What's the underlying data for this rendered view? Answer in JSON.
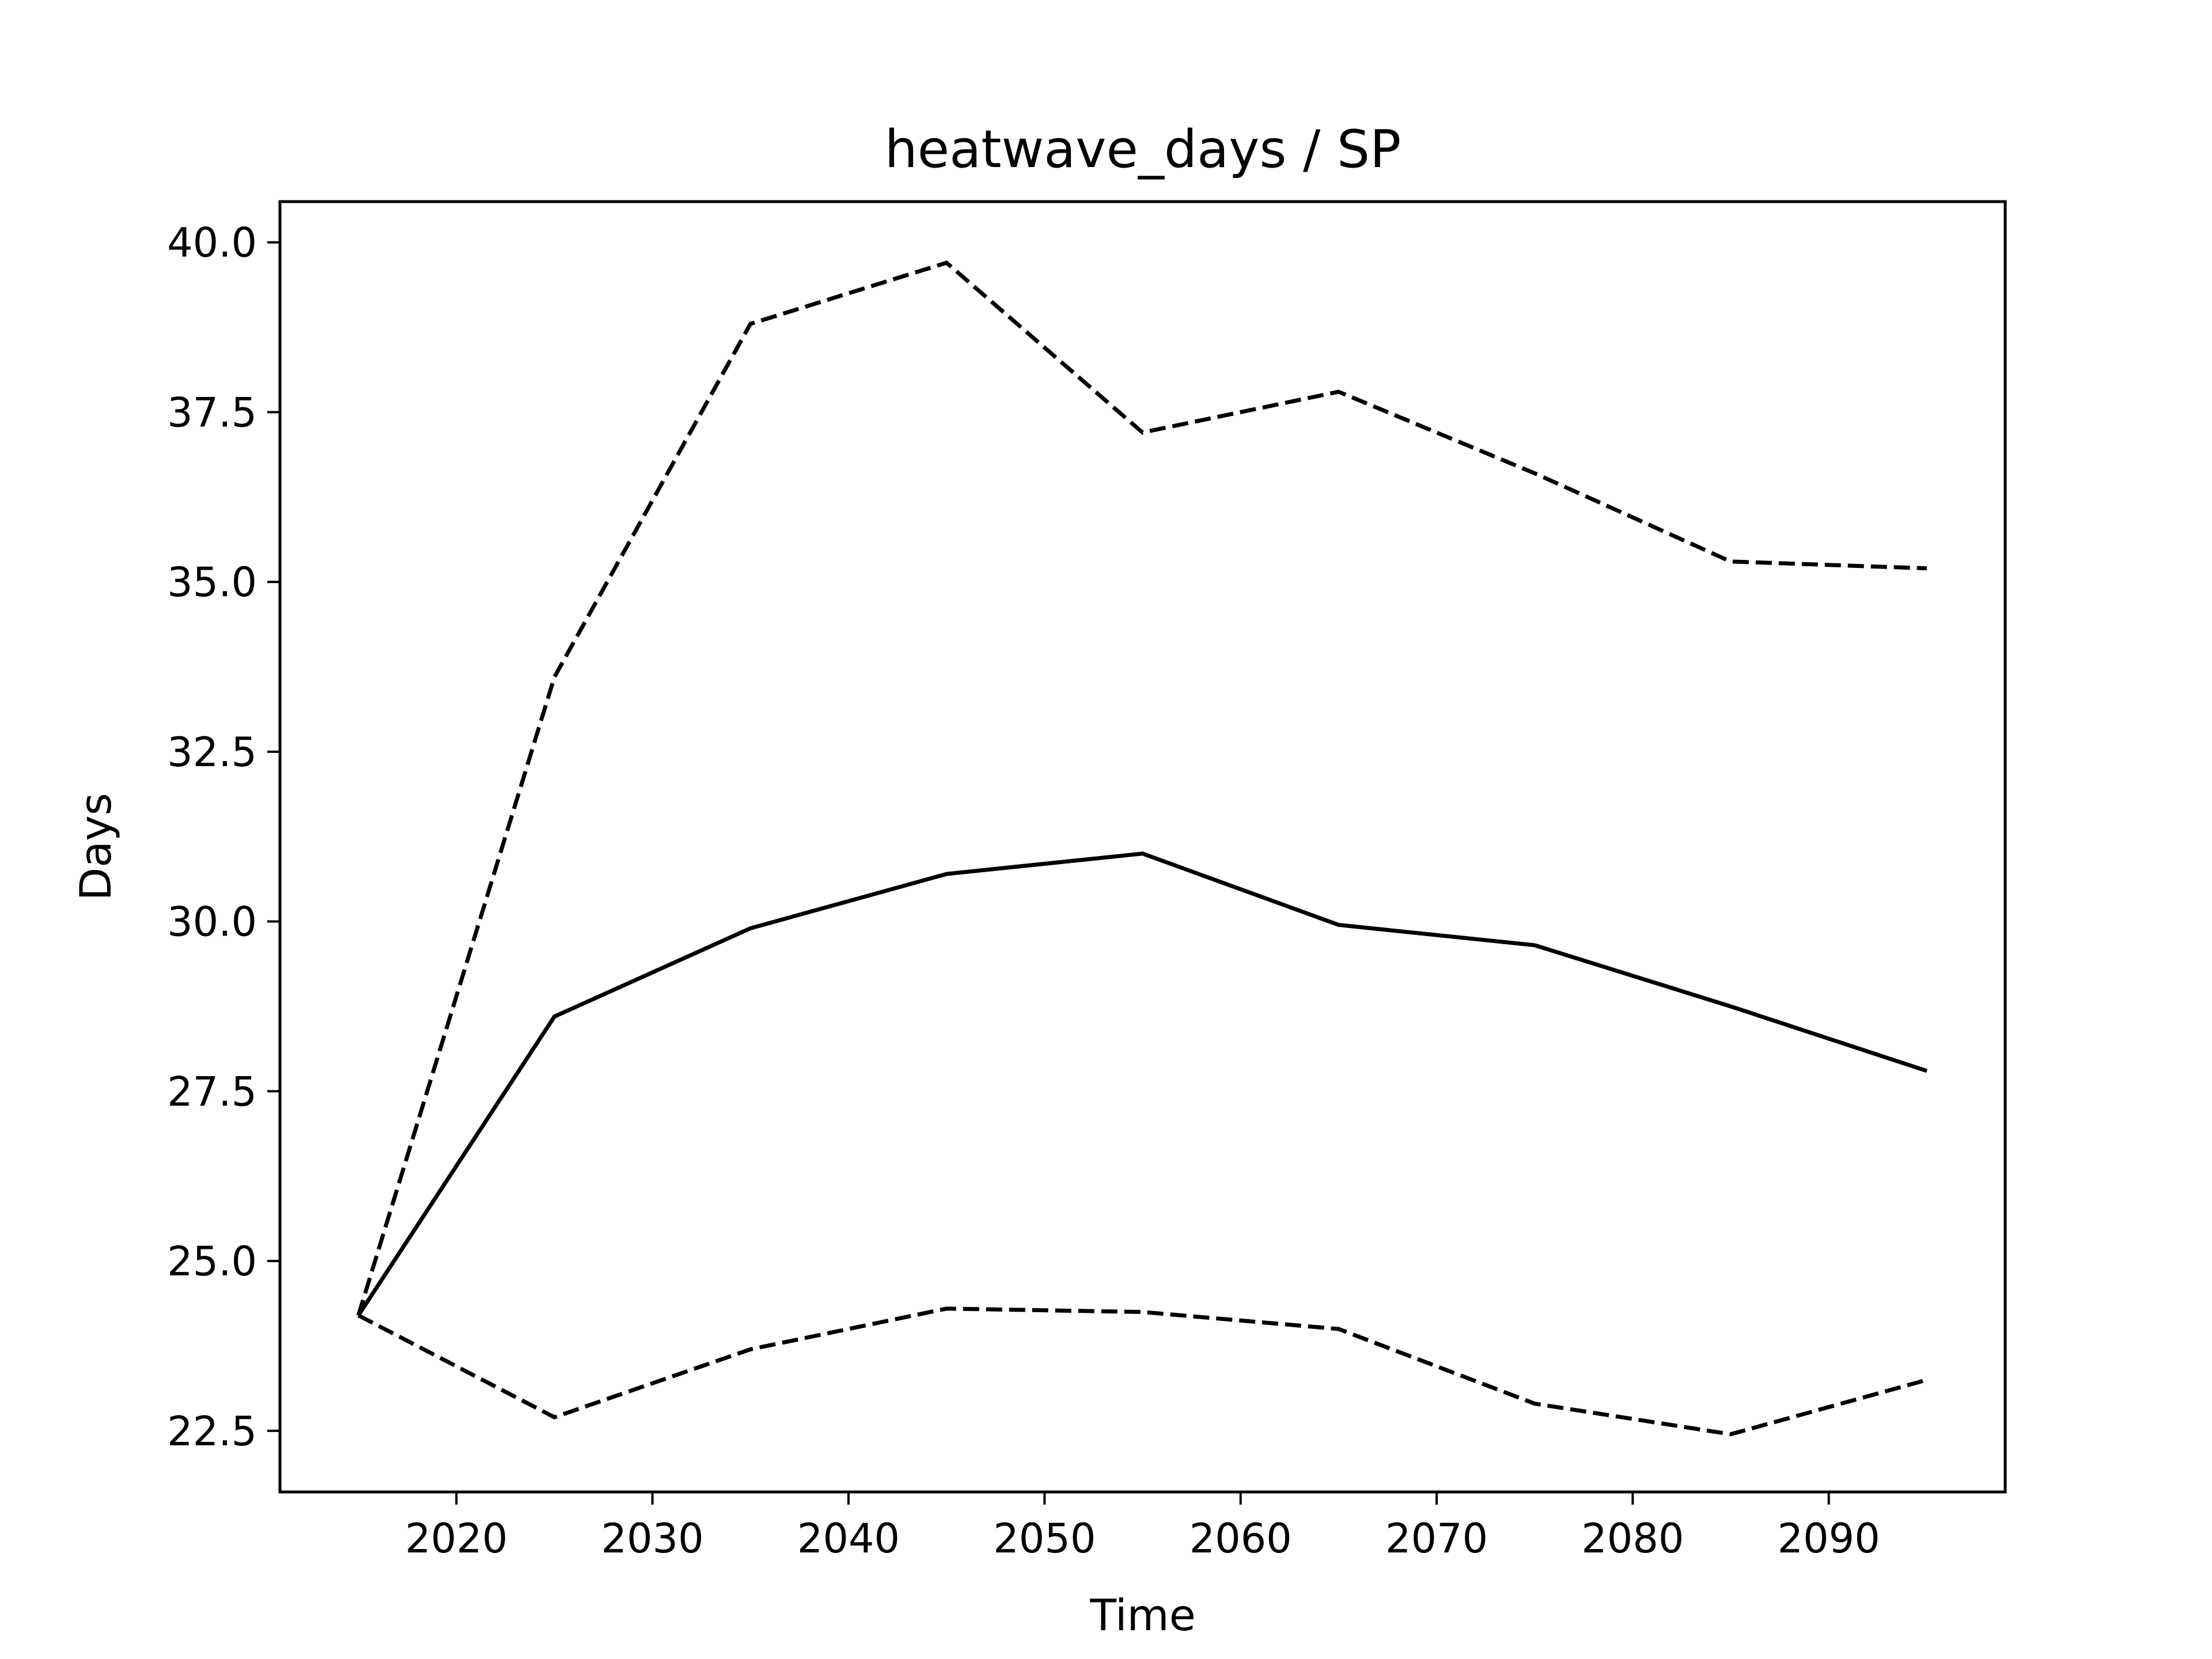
{
  "chart_data": {
    "type": "line",
    "title": "heatwave_days / SP",
    "xlabel": "Time",
    "ylabel": "Days",
    "xlim": [
      2011,
      2099
    ],
    "ylim": [
      21.6,
      40.6
    ],
    "xticks": [
      2020,
      2030,
      2040,
      2050,
      2060,
      2070,
      2080,
      2090
    ],
    "yticks": [
      22.5,
      25.0,
      27.5,
      30.0,
      32.5,
      35.0,
      37.5,
      40.0
    ],
    "ytick_labels": [
      "22.5",
      "25.0",
      "27.5",
      "30.0",
      "32.5",
      "35.0",
      "37.5",
      "40.0"
    ],
    "grid": false,
    "x": [
      2015,
      2025,
      2035,
      2045,
      2055,
      2065,
      2075,
      2085,
      2095
    ],
    "series": [
      {
        "style": "dashed",
        "color": "#000000",
        "values": [
          24.2,
          33.6,
          38.8,
          39.7,
          37.2,
          37.8,
          36.6,
          35.3,
          35.2
        ]
      },
      {
        "style": "solid",
        "color": "#000000",
        "values": [
          24.2,
          28.6,
          29.9,
          30.7,
          31.0,
          29.95,
          29.65,
          28.75,
          27.8
        ]
      },
      {
        "style": "dashed",
        "color": "#000000",
        "values": [
          24.2,
          22.7,
          23.7,
          24.3,
          24.25,
          24.0,
          22.9,
          22.45,
          23.25
        ]
      }
    ]
  }
}
